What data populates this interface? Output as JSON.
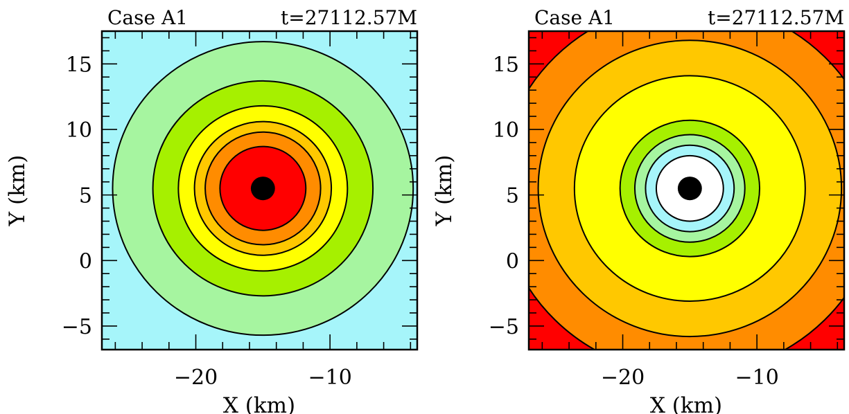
{
  "chart_data": [
    {
      "type": "heatmap",
      "title_left": "Case A1",
      "title_right": "t=27112.57M",
      "xlabel": "X (km)",
      "ylabel": "Y (km)",
      "xlim": [
        -27,
        -3.5
      ],
      "ylim": [
        -6.8,
        17.5
      ],
      "xticks": [
        -20,
        -10
      ],
      "xtick_labels": [
        "−20",
        "−10"
      ],
      "yticks": [
        -5,
        0,
        5,
        10,
        15
      ],
      "ytick_labels": [
        "−5",
        "0",
        "5",
        "10",
        "15"
      ],
      "grid": false,
      "center": [
        -15.0,
        5.5
      ],
      "core_radius": 0.9,
      "background_color": "#a6f5fa",
      "levels": [
        {
          "radius": 11.2,
          "color": "#a6f5a0"
        },
        {
          "radius": 8.2,
          "color": "#a6f000"
        },
        {
          "radius": 6.3,
          "color": "#ffff00"
        },
        {
          "radius": 5.1,
          "color": "#ffc800"
        },
        {
          "radius": 4.3,
          "color": "#ff8c00"
        },
        {
          "radius": 3.2,
          "color": "#ff0000"
        }
      ]
    },
    {
      "type": "heatmap",
      "title_left": "Case A1",
      "title_right": "t=27112.57M",
      "xlabel": "X (km)",
      "ylabel": "Y (km)",
      "xlim": [
        -27,
        -3.5
      ],
      "ylim": [
        -6.8,
        17.5
      ],
      "xticks": [
        -20,
        -10
      ],
      "xtick_labels": [
        "−20",
        "−10"
      ],
      "yticks": [
        -5,
        0,
        5,
        10,
        15
      ],
      "ytick_labels": [
        "−5",
        "0",
        "5",
        "10",
        "15"
      ],
      "grid": false,
      "center": [
        -15.0,
        5.5
      ],
      "core_radius": 0.9,
      "background_color": "#ff0000",
      "levels": [
        {
          "radius": 14.2,
          "color": "#ff8c00"
        },
        {
          "radius": 11.3,
          "color": "#ffc800"
        },
        {
          "radius": 8.6,
          "color": "#ffff00"
        },
        {
          "radius": 5.2,
          "color": "#a6f000"
        },
        {
          "radius": 4.1,
          "color": "#a6f5a0"
        },
        {
          "radius": 3.3,
          "color": "#a6f5fa"
        },
        {
          "radius": 2.5,
          "color": "#ffffff"
        }
      ]
    }
  ]
}
